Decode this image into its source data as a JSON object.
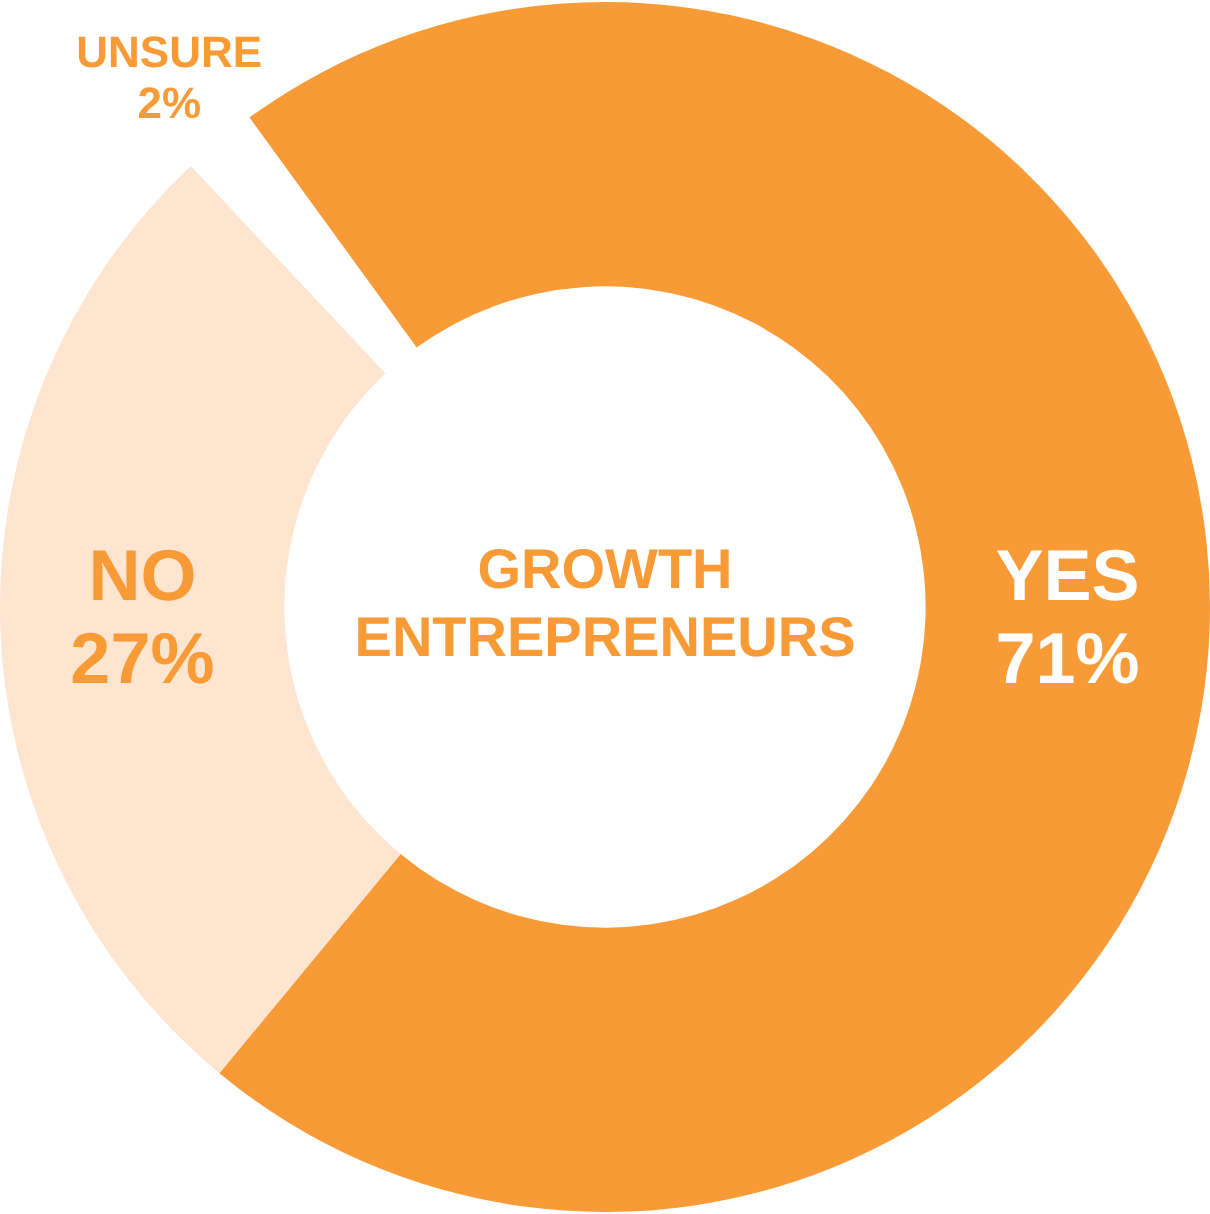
{
  "chart_data": {
    "type": "donut",
    "title": "GROWTH ENTREPRENEURS",
    "categories": [
      "YES",
      "NO",
      "UNSURE"
    ],
    "values": [
      71,
      27,
      2
    ],
    "colors": [
      "#f89b36",
      "#fde5cf",
      "#ffffff"
    ],
    "value_labels": [
      "71%",
      "27%",
      "2%"
    ]
  }
}
